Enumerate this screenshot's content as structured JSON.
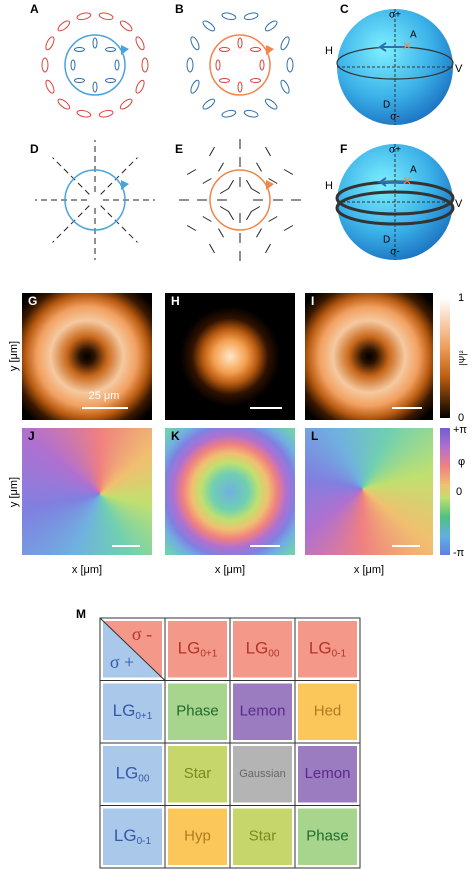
{
  "panel_labels": [
    "A",
    "B",
    "C",
    "D",
    "E",
    "F",
    "G",
    "H",
    "I",
    "J",
    "K",
    "L",
    "M"
  ],
  "spheres": [
    {
      "top": "σ+",
      "bottom": "σ-",
      "h": "H",
      "v": "V",
      "a": "A",
      "d": "D"
    },
    {
      "top": "σ+",
      "bottom": "σ-",
      "h": "H",
      "v": "V",
      "a": "A",
      "d": "D"
    }
  ],
  "images": {
    "y_label": "y [μm]",
    "x_label": "x [μm]",
    "scale_bar": "25 μm",
    "intensity_bar": {
      "max": "1",
      "min": "0",
      "label": "|Ψ|²"
    },
    "phase_bar": {
      "max": "+π",
      "symbol": "φ",
      "zero": "0",
      "min": "-π"
    }
  },
  "table": {
    "corner_top": "σ -",
    "corner_bottom": "σ +",
    "columns": [
      {
        "main": "LG",
        "sub": "0+1"
      },
      {
        "main": "LG",
        "sub": "00"
      },
      {
        "main": "LG",
        "sub": "0-1"
      }
    ],
    "rows": [
      {
        "header": {
          "main": "LG",
          "sub": "0+1"
        },
        "cells": [
          "Phase",
          "Lemon",
          "Hed"
        ]
      },
      {
        "header": {
          "main": "LG",
          "sub": "00"
        },
        "cells": [
          "Star",
          "Gaussian",
          "Lemon"
        ]
      },
      {
        "header": {
          "main": "LG",
          "sub": "0-1"
        },
        "cells": [
          "Hyp",
          "Star",
          "Phase"
        ]
      }
    ]
  }
}
